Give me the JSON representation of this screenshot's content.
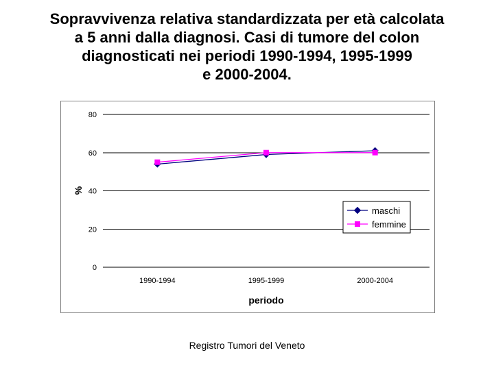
{
  "title_lines": [
    "Sopravvivenza relativa standardizzata per età calcolata",
    "a 5 anni dalla diagnosi. Casi di tumore del colon",
    "diagnosticati nei periodi 1990-1994, 1995-1999",
    "e 2000-2004."
  ],
  "chart_data": {
    "type": "line",
    "title": "",
    "xlabel": "periodo",
    "ylabel": "%",
    "categories": [
      "1990-1994",
      "1995-1999",
      "2000-2004"
    ],
    "ylim": [
      0,
      80
    ],
    "yticks": [
      0,
      20,
      40,
      60,
      80
    ],
    "grid": true,
    "legend": "right",
    "series": [
      {
        "name": "maschi",
        "values": [
          54,
          59,
          61
        ],
        "color": "#000080",
        "marker": "diamond"
      },
      {
        "name": "femmine",
        "values": [
          55,
          60,
          60
        ],
        "color": "#ff00ff",
        "marker": "square"
      }
    ]
  },
  "footer": {
    "source": "Registro Tumori del Veneto"
  }
}
